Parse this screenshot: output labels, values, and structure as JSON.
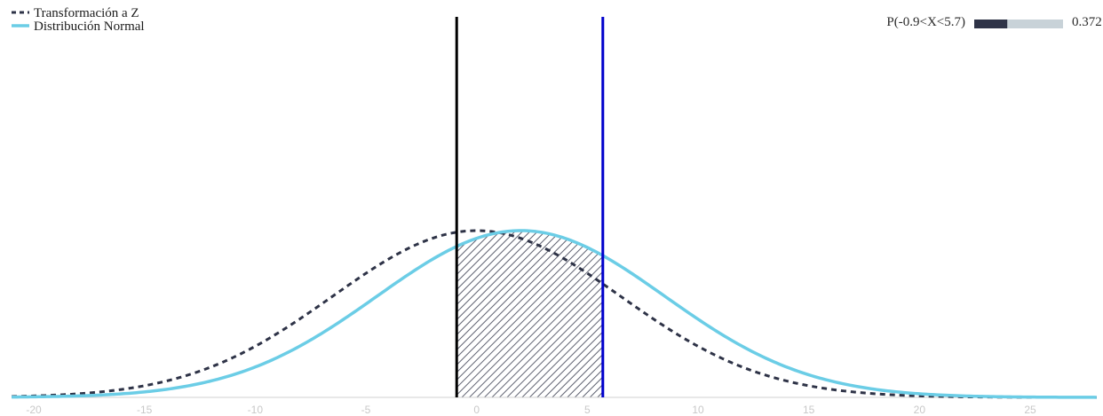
{
  "chart_data": {
    "type": "line",
    "title": "",
    "xlabel": "",
    "ylabel": "",
    "xlim": [
      -21,
      28
    ],
    "x_ticks": [
      "-20",
      "-15",
      "-10",
      "-5",
      "0",
      "5",
      "10",
      "15",
      "20",
      "25"
    ],
    "legend_position": "top-left",
    "grid": false,
    "series": [
      {
        "name": "Transformación a Z",
        "distribution": "normal",
        "mean": 0,
        "sd": 6.5,
        "style": "dashed",
        "color": "#2e3347"
      },
      {
        "name": "Distribución Normal",
        "distribution": "normal",
        "mean": 2,
        "sd": 6.5,
        "style": "solid",
        "color": "#6bcde6"
      }
    ],
    "interval": {
      "lower": -0.9,
      "upper": 5.7,
      "lower_line_color": "#000000",
      "upper_line_color": "#0000cc",
      "shading": "hatched"
    },
    "probability": {
      "label": "P(-0.9<X<5.7)",
      "value_text": "0.372",
      "value": 0.372,
      "bar_fill_color": "#2e3347",
      "bar_track_color": "#c8d2d8"
    }
  }
}
